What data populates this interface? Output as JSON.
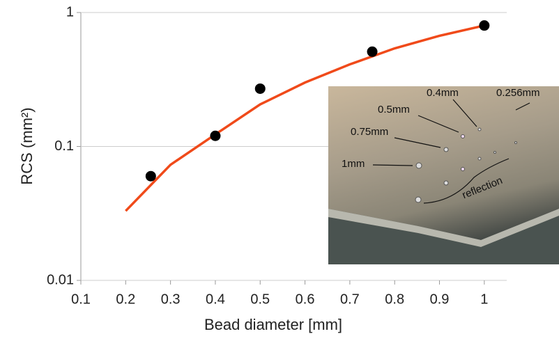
{
  "chart_data": {
    "type": "scatter",
    "x_label": "Bead diameter [mm]",
    "y_label": "RCS (mm²)",
    "xlim": [
      0.1,
      1.05
    ],
    "ylim": [
      0.01,
      1
    ],
    "xticks": [
      0.1,
      0.2,
      0.3,
      0.4,
      0.5,
      0.6,
      0.7,
      0.8,
      0.9,
      1
    ],
    "yticks": [
      0.01,
      0.1,
      1
    ],
    "y_scale": "log",
    "grid": true,
    "series": [
      {
        "type": "scatter",
        "color": "#000000",
        "x": [
          0.256,
          0.4,
          0.5,
          0.75,
          1
        ],
        "values": [
          0.06,
          0.12,
          0.27,
          0.51,
          0.8
        ]
      },
      {
        "type": "line",
        "color": "#f04a1a",
        "x": [
          0.2,
          0.3,
          0.4,
          0.5,
          0.6,
          0.7,
          0.8,
          0.9,
          1
        ],
        "values": [
          0.033,
          0.073,
          0.123,
          0.206,
          0.3,
          0.41,
          0.54,
          0.67,
          0.8
        ]
      }
    ],
    "inset_labels": [
      "0.4mm",
      "0.256mm",
      "0.5mm",
      "0.75mm",
      "1mm",
      "reflection"
    ]
  }
}
